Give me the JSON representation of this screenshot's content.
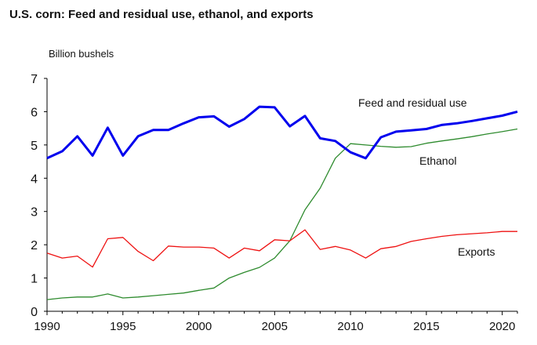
{
  "chart_data": {
    "type": "line",
    "title": "U.S. corn: Feed and residual use, ethanol, and exports",
    "ylabel": "Billion bushels",
    "xlabel": "",
    "ylim": [
      0,
      7
    ],
    "xlim": [
      1990,
      2021
    ],
    "y_ticks": [
      "0",
      "1",
      "2",
      "3",
      "4",
      "5",
      "6",
      "7"
    ],
    "x_ticks": [
      "1990",
      "1995",
      "2000",
      "2005",
      "2010",
      "2015",
      "2020"
    ],
    "grid": false,
    "legend": "inline labels",
    "x": [
      1990,
      1991,
      1992,
      1993,
      1994,
      1995,
      1996,
      1997,
      1998,
      1999,
      2000,
      2001,
      2002,
      2003,
      2004,
      2005,
      2006,
      2007,
      2008,
      2009,
      2010,
      2011,
      2012,
      2013,
      2014,
      2015,
      2016,
      2017,
      2018,
      2019,
      2020,
      2021
    ],
    "series": [
      {
        "name": "Feed and residual use",
        "color": "#0000ee",
        "width": 3,
        "values": [
          4.6,
          4.81,
          5.26,
          4.68,
          5.52,
          4.68,
          5.26,
          5.45,
          5.45,
          5.65,
          5.83,
          5.86,
          5.55,
          5.78,
          6.15,
          6.13,
          5.56,
          5.87,
          5.2,
          5.12,
          4.78,
          4.6,
          5.23,
          5.4,
          5.44,
          5.48,
          5.6,
          5.65,
          5.72,
          5.8,
          5.88,
          6.0
        ]
      },
      {
        "name": "Ethanol",
        "color": "#2e8b2e",
        "width": 1.3,
        "values": [
          0.35,
          0.4,
          0.43,
          0.43,
          0.52,
          0.4,
          0.43,
          0.47,
          0.51,
          0.55,
          0.63,
          0.7,
          1.0,
          1.17,
          1.32,
          1.6,
          2.12,
          3.05,
          3.7,
          4.6,
          5.04,
          5.0,
          4.96,
          4.93,
          4.95,
          5.05,
          5.12,
          5.18,
          5.25,
          5.33,
          5.4,
          5.48
        ]
      },
      {
        "name": "Exports",
        "color": "#ee1111",
        "width": 1.3,
        "values": [
          1.75,
          1.6,
          1.66,
          1.33,
          2.18,
          2.22,
          1.8,
          1.52,
          1.96,
          1.93,
          1.93,
          1.9,
          1.6,
          1.9,
          1.82,
          2.15,
          2.12,
          2.45,
          1.86,
          1.95,
          1.84,
          1.6,
          1.88,
          1.95,
          2.1,
          2.18,
          2.25,
          2.3,
          2.33,
          2.36,
          2.4,
          2.4
        ]
      }
    ]
  }
}
